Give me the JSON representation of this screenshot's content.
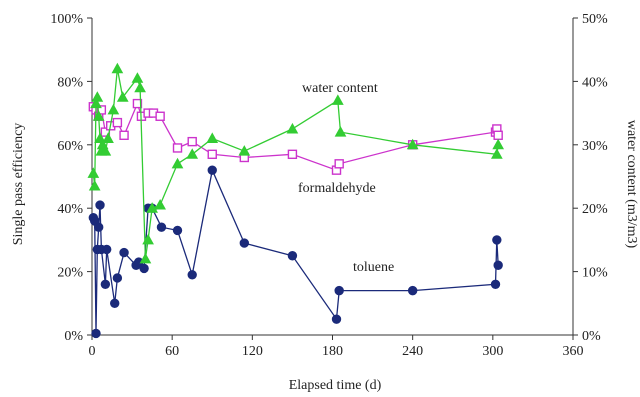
{
  "chart_data": {
    "type": "line",
    "xlabel": "Elapsed time (d)",
    "ylabel": "Single pass efficiency",
    "y2label": "water content (m3/m3)",
    "xlim": [
      0,
      360
    ],
    "ylim": [
      0,
      100
    ],
    "y2lim": [
      0,
      50
    ],
    "x_ticks": [
      0,
      60,
      120,
      180,
      240,
      300,
      360
    ],
    "y_ticks": [
      "0%",
      "20%",
      "40%",
      "60%",
      "80%",
      "100%"
    ],
    "y2_ticks": [
      "0%",
      "10%",
      "20%",
      "30%",
      "40%",
      "50%"
    ],
    "grid": false,
    "series": [
      {
        "name": "toluene",
        "axis": "left",
        "color": "#1b2a7a",
        "marker": "circle-filled",
        "x": [
          1,
          2,
          3,
          4,
          5,
          6,
          7,
          10,
          11,
          17,
          19,
          24,
          33,
          35,
          39,
          42,
          45,
          52,
          64,
          75,
          90,
          114,
          150,
          183,
          185,
          240,
          302,
          303,
          304
        ],
        "y": [
          37,
          36,
          0.5,
          27,
          34,
          41,
          27,
          16,
          27,
          10,
          18,
          26,
          22,
          23,
          21,
          40,
          40,
          34,
          33,
          19,
          52,
          29,
          25,
          5,
          14,
          14,
          16,
          30,
          22
        ]
      },
      {
        "name": "formaldehyde",
        "axis": "left",
        "color": "#cc33cc",
        "marker": "square-open",
        "x": [
          1,
          3,
          5,
          7,
          10,
          14,
          19,
          24,
          34,
          37,
          42,
          46,
          51,
          64,
          75,
          90,
          114,
          150,
          183,
          185,
          240,
          302,
          303,
          304
        ],
        "y": [
          72,
          71,
          69,
          71,
          64,
          66,
          67,
          63,
          73,
          69,
          70,
          70,
          69,
          59,
          61,
          57,
          56,
          57,
          52,
          54,
          60,
          64,
          65,
          63
        ]
      },
      {
        "name": "water content",
        "axis": "right",
        "color": "#33cc33",
        "marker": "triangle-filled",
        "x": [
          1,
          2,
          3,
          4,
          5,
          6,
          7,
          8,
          10,
          12,
          16,
          19,
          23,
          34,
          36,
          40,
          42,
          45,
          51,
          64,
          75,
          90,
          114,
          150,
          184,
          186,
          240,
          303,
          304
        ],
        "y": [
          25.5,
          23.5,
          36.5,
          37.5,
          34.5,
          31,
          29,
          30,
          29,
          31,
          35.5,
          42,
          37.5,
          40.5,
          39,
          12,
          15,
          20,
          20.5,
          27,
          28.5,
          31,
          29,
          32.5,
          37,
          32,
          30,
          28.5,
          30
        ]
      }
    ],
    "annotations": [
      {
        "text": "water content",
        "series": "water content"
      },
      {
        "text": "formaldehyde",
        "series": "formaldehyde"
      },
      {
        "text": "toluene",
        "series": "toluene"
      }
    ]
  }
}
